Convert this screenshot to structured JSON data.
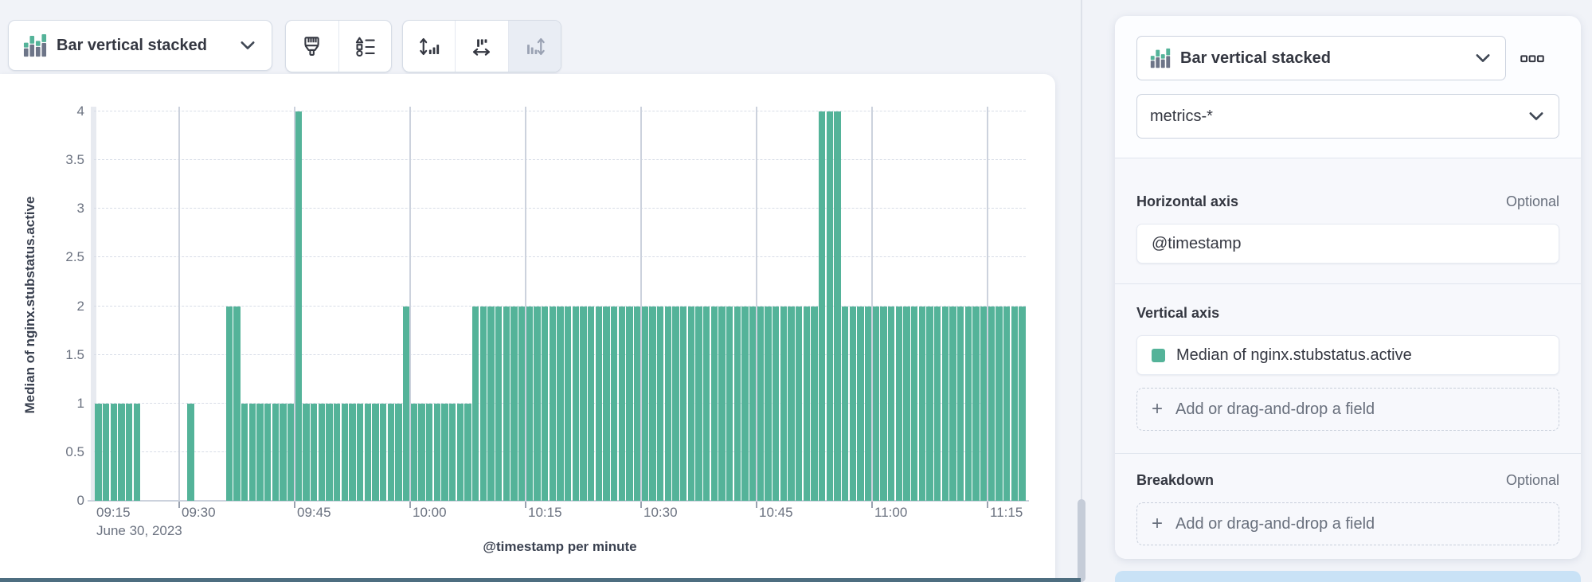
{
  "toolbar": {
    "chart_type": {
      "label": "Bar vertical stacked"
    },
    "icon_buttons": [
      {
        "name": "paintbrush",
        "enabled": true
      },
      {
        "name": "legend-values",
        "enabled": true
      },
      {
        "name": "vertical-axis",
        "enabled": true
      },
      {
        "name": "horizontal-axis",
        "enabled": true
      },
      {
        "name": "right-axis",
        "enabled": false
      }
    ]
  },
  "chart": {
    "y_axis_title": "Median of nginx.stubstatus.active",
    "x_axis_title": "@timestamp per minute",
    "y_ticks": [
      "0",
      "0.5",
      "1",
      "1.5",
      "2",
      "2.5",
      "3",
      "3.5",
      "4"
    ],
    "x_ticks": [
      "09:15",
      "09:30",
      "09:45",
      "10:00",
      "10:15",
      "10:30",
      "10:45",
      "11:00",
      "11:15"
    ],
    "first_tick_date": "June 30, 2023",
    "bar_color": "#54b399"
  },
  "chart_data": {
    "type": "bar",
    "title": "",
    "xlabel": "@timestamp per minute",
    "ylabel": "Median of nginx.stubstatus.active",
    "ylim": [
      0,
      4
    ],
    "x_start": "09:19",
    "x_end": "11:19",
    "x_interval": "1 minute",
    "date": "June 30, 2023",
    "grid": {
      "horizontal_dashed_step": 0.5,
      "vertical_solid_step_minutes": 15
    },
    "series": [
      {
        "name": "Median of nginx.stubstatus.active",
        "color": "#54b399",
        "segments": [
          {
            "from": "09:19",
            "to": "09:24",
            "value": 1
          },
          {
            "from": "09:25",
            "to": "09:30",
            "value": 0
          },
          {
            "from": "09:31",
            "to": "09:31",
            "value": 1
          },
          {
            "from": "09:32",
            "to": "09:35",
            "value": 0
          },
          {
            "from": "09:36",
            "to": "09:37",
            "value": 2
          },
          {
            "from": "09:38",
            "to": "09:44",
            "value": 1
          },
          {
            "from": "09:45",
            "to": "09:45",
            "value": 4
          },
          {
            "from": "09:46",
            "to": "09:58",
            "value": 1
          },
          {
            "from": "09:59",
            "to": "09:59",
            "value": 2
          },
          {
            "from": "10:00",
            "to": "10:07",
            "value": 1
          },
          {
            "from": "10:08",
            "to": "10:52",
            "value": 2
          },
          {
            "from": "10:53",
            "to": "10:55",
            "value": 4
          },
          {
            "from": "10:56",
            "to": "11:19",
            "value": 2
          }
        ]
      }
    ]
  },
  "panel": {
    "chart_type": {
      "label": "Bar vertical stacked"
    },
    "data_view": "metrics-*",
    "sections": [
      {
        "title": "Horizontal axis",
        "optional_label": "Optional",
        "field": "@timestamp"
      },
      {
        "title": "Vertical axis",
        "field": "Median of nginx.stubstatus.active",
        "field_color": "#54b399",
        "add_label": "Add or drag-and-drop a field"
      },
      {
        "title": "Breakdown",
        "optional_label": "Optional",
        "add_label": "Add or drag-and-drop a field"
      }
    ]
  },
  "colors": {
    "bar": "#54b399",
    "accent_gray": "#69707d",
    "text_dark": "#343741",
    "slate_strip": "#4e6e80",
    "blue_strip": "#c9e2f6"
  }
}
